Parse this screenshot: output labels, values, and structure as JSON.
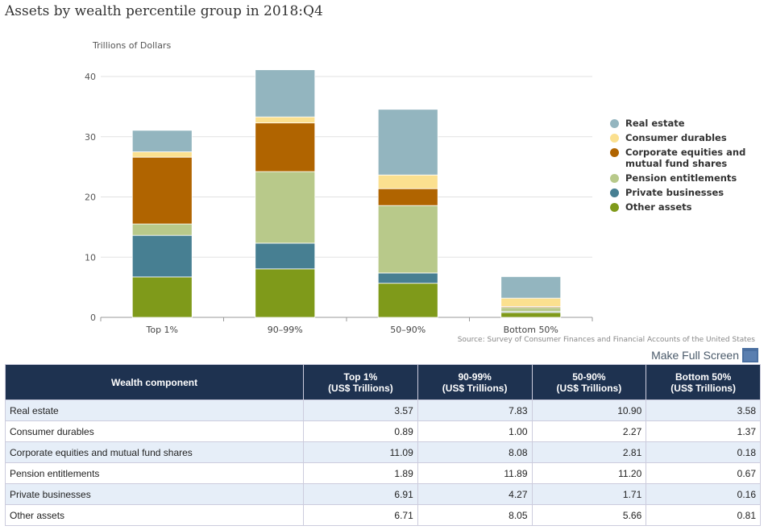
{
  "title": "Assets by wealth percentile group in 2018:Q4",
  "chart_data": {
    "type": "bar",
    "stacked": true,
    "title": "Assets by wealth percentile group in 2018:Q4",
    "ylabel": "Trillions of Dollars",
    "categories": [
      "Top 1%",
      "90–99%",
      "50–90%",
      "Bottom 50%"
    ],
    "ylim": [
      0,
      40
    ],
    "yticks": [
      0,
      10,
      20,
      30,
      40
    ],
    "grid": true,
    "legend": "right",
    "series": [
      {
        "name": "Other assets",
        "color": "#7f9a1a",
        "values": [
          6.71,
          8.05,
          5.66,
          0.81
        ]
      },
      {
        "name": "Private businesses",
        "color": "#477f92",
        "values": [
          6.91,
          4.27,
          1.71,
          0.16
        ]
      },
      {
        "name": "Pension entitlements",
        "color": "#b8c98a",
        "values": [
          1.89,
          11.89,
          11.2,
          0.67
        ]
      },
      {
        "name": "Corporate equities and mutual fund shares",
        "color": "#b06400",
        "values": [
          11.09,
          8.08,
          2.81,
          0.18
        ]
      },
      {
        "name": "Consumer durables",
        "color": "#fbe08f",
        "values": [
          0.89,
          1.0,
          2.27,
          1.37
        ]
      },
      {
        "name": "Real estate",
        "color": "#93b5bf",
        "values": [
          3.57,
          7.83,
          10.9,
          3.58
        ]
      }
    ],
    "source": "Source: Survey of Consumer Finances and Financial Accounts of the United States"
  },
  "legend": [
    {
      "label": "Real estate",
      "color": "#93b5bf"
    },
    {
      "label": "Consumer durables",
      "color": "#fbe08f"
    },
    {
      "label": "Corporate equities and mutual fund shares",
      "color": "#b06400"
    },
    {
      "label": "Pension entitlements",
      "color": "#b8c98a"
    },
    {
      "label": "Private businesses",
      "color": "#477f92"
    },
    {
      "label": "Other assets",
      "color": "#7f9a1a"
    }
  ],
  "fullscreen": "Make Full Screen",
  "table": {
    "headers": [
      [
        "Wealth component",
        ""
      ],
      [
        "Top 1%",
        "(US$ Trillions)"
      ],
      [
        "90-99%",
        "(US$ Trillions)"
      ],
      [
        "50-90%",
        "(US$ Trillions)"
      ],
      [
        "Bottom 50%",
        "(US$ Trillions)"
      ]
    ],
    "rows": [
      [
        "Real estate",
        "3.57",
        "7.83",
        "10.90",
        "3.58"
      ],
      [
        "Consumer durables",
        "0.89",
        "1.00",
        "2.27",
        "1.37"
      ],
      [
        "Corporate equities and mutual fund shares",
        "11.09",
        "8.08",
        "2.81",
        "0.18"
      ],
      [
        "Pension entitlements",
        "1.89",
        "11.89",
        "11.20",
        "0.67"
      ],
      [
        "Private businesses",
        "6.91",
        "4.27",
        "1.71",
        "0.16"
      ],
      [
        "Other assets",
        "6.71",
        "8.05",
        "5.66",
        "0.81"
      ]
    ]
  }
}
